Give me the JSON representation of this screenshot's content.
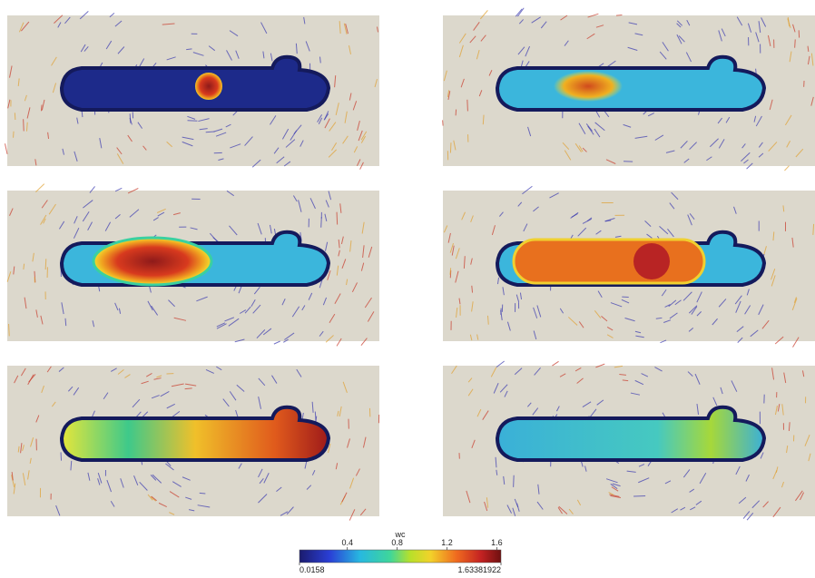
{
  "colorbar": {
    "title": "wc",
    "min": 0.0158,
    "max": 1.63381922,
    "ticks": [
      0.4,
      0.8,
      1.2,
      1.6
    ]
  }
}
